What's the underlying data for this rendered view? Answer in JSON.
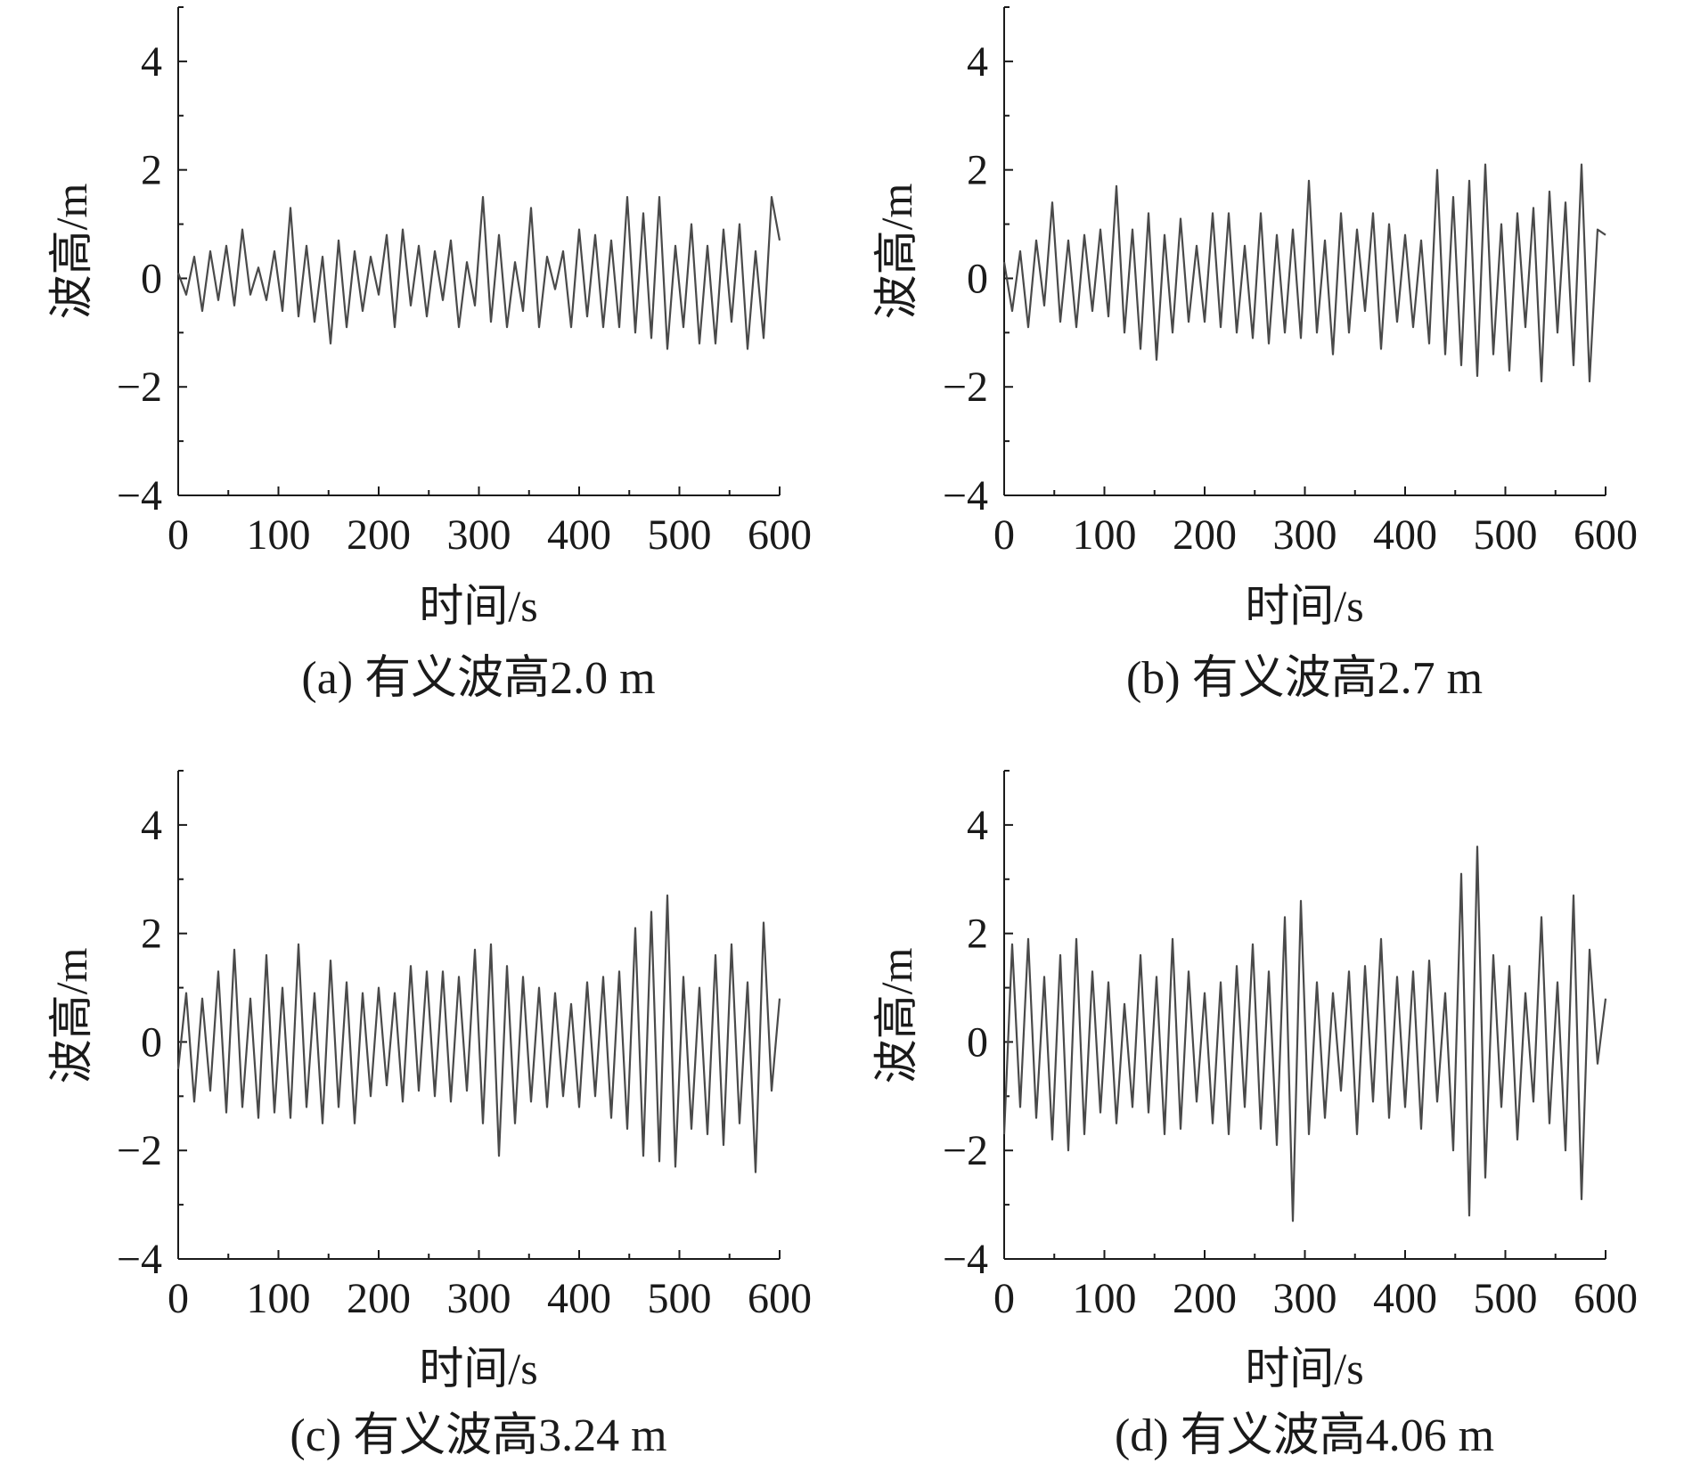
{
  "figure": {
    "line_color": "#4a4a4a",
    "axis_color": "#1a1a1a",
    "background": "#ffffff"
  },
  "chart_data": [
    {
      "id": "a",
      "type": "line",
      "caption": "(a) 有义波高2.0 m",
      "xlabel": "时间/s",
      "ylabel": "波高/m",
      "xlim": [
        0,
        600
      ],
      "ylim": [
        -4,
        5
      ],
      "xticks": [
        "0",
        "100",
        "200",
        "300",
        "400",
        "500",
        "600"
      ],
      "yticks": [
        "4",
        "2",
        "0",
        "−2",
        "−4"
      ],
      "series": [
        {
          "x": [
            0,
            8,
            16,
            24,
            32,
            40,
            48,
            56,
            64,
            72,
            80,
            88,
            96,
            104,
            112,
            120,
            128,
            136,
            144,
            152,
            160,
            168,
            176,
            184,
            192,
            200,
            208,
            216,
            224,
            232,
            240,
            248,
            256,
            264,
            272,
            280,
            288,
            296,
            304,
            312,
            320,
            328,
            336,
            344,
            352,
            360,
            368,
            376,
            384,
            392,
            400,
            408,
            416,
            424,
            432,
            440,
            448,
            456,
            464,
            472,
            480,
            488,
            496,
            504,
            512,
            520,
            528,
            536,
            544,
            552,
            560,
            568,
            576,
            584,
            592,
            600
          ],
          "values": [
            0.1,
            -0.3,
            0.4,
            -0.6,
            0.5,
            -0.4,
            0.6,
            -0.5,
            0.9,
            -0.3,
            0.2,
            -0.4,
            0.5,
            -0.6,
            1.3,
            -0.7,
            0.6,
            -0.8,
            0.4,
            -1.2,
            0.7,
            -0.9,
            0.5,
            -0.6,
            0.4,
            -0.3,
            0.8,
            -0.9,
            0.9,
            -0.5,
            0.6,
            -0.7,
            0.5,
            -0.4,
            0.7,
            -0.9,
            0.3,
            -0.5,
            1.5,
            -0.8,
            0.8,
            -0.9,
            0.3,
            -0.6,
            1.3,
            -0.9,
            0.4,
            -0.2,
            0.5,
            -0.9,
            0.9,
            -0.7,
            0.8,
            -0.9,
            0.7,
            -0.9,
            1.5,
            -1.0,
            1.2,
            -1.1,
            1.5,
            -1.3,
            0.6,
            -0.9,
            1.0,
            -1.2,
            0.6,
            -1.2,
            0.9,
            -0.8,
            1.0,
            -1.3,
            0.5,
            -1.1,
            1.5,
            0.7
          ]
        }
      ]
    },
    {
      "id": "b",
      "type": "line",
      "caption": "(b) 有义波高2.7 m",
      "xlabel": "时间/s",
      "ylabel": "波高/m",
      "xlim": [
        0,
        600
      ],
      "ylim": [
        -4,
        5
      ],
      "xticks": [
        "0",
        "100",
        "200",
        "300",
        "400",
        "500",
        "600"
      ],
      "yticks": [
        "4",
        "2",
        "0",
        "−2",
        "−4"
      ],
      "series": [
        {
          "x": [
            0,
            8,
            16,
            24,
            32,
            40,
            48,
            56,
            64,
            72,
            80,
            88,
            96,
            104,
            112,
            120,
            128,
            136,
            144,
            152,
            160,
            168,
            176,
            184,
            192,
            200,
            208,
            216,
            224,
            232,
            240,
            248,
            256,
            264,
            272,
            280,
            288,
            296,
            304,
            312,
            320,
            328,
            336,
            344,
            352,
            360,
            368,
            376,
            384,
            392,
            400,
            408,
            416,
            424,
            432,
            440,
            448,
            456,
            464,
            472,
            480,
            488,
            496,
            504,
            512,
            520,
            528,
            536,
            544,
            552,
            560,
            568,
            576,
            584,
            592,
            600
          ],
          "values": [
            0.3,
            -0.6,
            0.5,
            -0.9,
            0.7,
            -0.5,
            1.4,
            -0.8,
            0.7,
            -0.9,
            0.8,
            -0.6,
            0.9,
            -0.7,
            1.7,
            -1.0,
            0.9,
            -1.3,
            1.2,
            -1.5,
            0.8,
            -1.0,
            1.1,
            -0.8,
            0.6,
            -0.8,
            1.2,
            -0.9,
            1.2,
            -1.0,
            0.6,
            -1.1,
            1.2,
            -1.2,
            0.8,
            -1.0,
            0.9,
            -1.1,
            1.8,
            -1.0,
            0.7,
            -1.4,
            1.2,
            -1.0,
            0.9,
            -0.6,
            1.2,
            -1.3,
            1.0,
            -0.8,
            0.8,
            -0.9,
            0.7,
            -1.2,
            2.0,
            -1.4,
            1.5,
            -1.6,
            1.8,
            -1.8,
            2.1,
            -1.4,
            1.0,
            -1.7,
            1.2,
            -0.9,
            1.3,
            -1.9,
            1.6,
            -1.0,
            1.4,
            -1.6,
            2.1,
            -1.9,
            0.9,
            0.8
          ]
        }
      ]
    },
    {
      "id": "c",
      "type": "line",
      "caption": "(c) 有义波高3.24 m",
      "xlabel": "时间/s",
      "ylabel": "波高/m",
      "xlim": [
        0,
        600
      ],
      "ylim": [
        -4,
        5
      ],
      "xticks": [
        "0",
        "100",
        "200",
        "300",
        "400",
        "500",
        "600"
      ],
      "yticks": [
        "4",
        "2",
        "0",
        "−2",
        "−4"
      ],
      "series": [
        {
          "x": [
            0,
            8,
            16,
            24,
            32,
            40,
            48,
            56,
            64,
            72,
            80,
            88,
            96,
            104,
            112,
            120,
            128,
            136,
            144,
            152,
            160,
            168,
            176,
            184,
            192,
            200,
            208,
            216,
            224,
            232,
            240,
            248,
            256,
            264,
            272,
            280,
            288,
            296,
            304,
            312,
            320,
            328,
            336,
            344,
            352,
            360,
            368,
            376,
            384,
            392,
            400,
            408,
            416,
            424,
            432,
            440,
            448,
            456,
            464,
            472,
            480,
            488,
            496,
            504,
            512,
            520,
            528,
            536,
            544,
            552,
            560,
            568,
            576,
            584,
            592,
            600
          ],
          "values": [
            -0.5,
            0.9,
            -1.1,
            0.8,
            -0.9,
            1.3,
            -1.3,
            1.7,
            -1.2,
            0.8,
            -1.4,
            1.6,
            -1.3,
            1.0,
            -1.4,
            1.8,
            -1.2,
            0.9,
            -1.5,
            1.5,
            -1.2,
            1.1,
            -1.5,
            0.9,
            -1.0,
            1.0,
            -0.8,
            0.9,
            -1.1,
            1.4,
            -0.9,
            1.3,
            -1.0,
            1.3,
            -1.1,
            1.2,
            -0.9,
            1.7,
            -1.5,
            1.8,
            -2.1,
            1.4,
            -1.5,
            1.2,
            -1.1,
            1.0,
            -1.2,
            0.9,
            -1.0,
            0.7,
            -1.2,
            1.1,
            -1.0,
            1.2,
            -1.4,
            1.3,
            -1.6,
            2.1,
            -2.1,
            2.4,
            -2.2,
            2.7,
            -2.3,
            1.2,
            -1.6,
            1.0,
            -1.7,
            1.6,
            -1.9,
            1.8,
            -1.5,
            1.1,
            -2.4,
            2.2,
            -0.9,
            0.8
          ]
        }
      ]
    },
    {
      "id": "d",
      "type": "line",
      "caption": "(d) 有义波高4.06 m",
      "xlabel": "时间/s",
      "ylabel": "波高/m",
      "xlim": [
        0,
        600
      ],
      "ylim": [
        -4,
        5
      ],
      "xticks": [
        "0",
        "100",
        "200",
        "300",
        "400",
        "500",
        "600"
      ],
      "yticks": [
        "4",
        "2",
        "0",
        "−2",
        "−4"
      ],
      "series": [
        {
          "x": [
            0,
            8,
            16,
            24,
            32,
            40,
            48,
            56,
            64,
            72,
            80,
            88,
            96,
            104,
            112,
            120,
            128,
            136,
            144,
            152,
            160,
            168,
            176,
            184,
            192,
            200,
            208,
            216,
            224,
            232,
            240,
            248,
            256,
            264,
            272,
            280,
            288,
            296,
            304,
            312,
            320,
            328,
            336,
            344,
            352,
            360,
            368,
            376,
            384,
            392,
            400,
            408,
            416,
            424,
            432,
            440,
            448,
            456,
            464,
            472,
            480,
            488,
            496,
            504,
            512,
            520,
            528,
            536,
            544,
            552,
            560,
            568,
            576,
            584,
            592,
            600
          ],
          "values": [
            -1.7,
            1.8,
            -1.2,
            1.9,
            -1.4,
            1.2,
            -1.8,
            1.6,
            -2.0,
            1.9,
            -1.7,
            1.3,
            -1.3,
            1.1,
            -1.5,
            0.7,
            -1.2,
            1.6,
            -1.3,
            1.2,
            -1.7,
            1.9,
            -1.6,
            1.3,
            -1.1,
            0.9,
            -1.5,
            1.1,
            -1.7,
            1.4,
            -1.2,
            1.8,
            -1.6,
            1.3,
            -1.9,
            2.3,
            -3.3,
            2.6,
            -1.7,
            1.1,
            -1.4,
            0.9,
            -0.9,
            1.3,
            -1.7,
            1.4,
            -1.1,
            1.9,
            -1.4,
            1.2,
            -1.2,
            1.3,
            -1.6,
            1.5,
            -1.1,
            0.9,
            -2.0,
            3.1,
            -3.2,
            3.6,
            -2.5,
            1.6,
            -1.2,
            1.4,
            -1.8,
            0.9,
            -1.1,
            2.3,
            -1.5,
            1.1,
            -2.0,
            2.7,
            -2.9,
            1.7,
            -0.4,
            0.8
          ]
        }
      ]
    }
  ]
}
